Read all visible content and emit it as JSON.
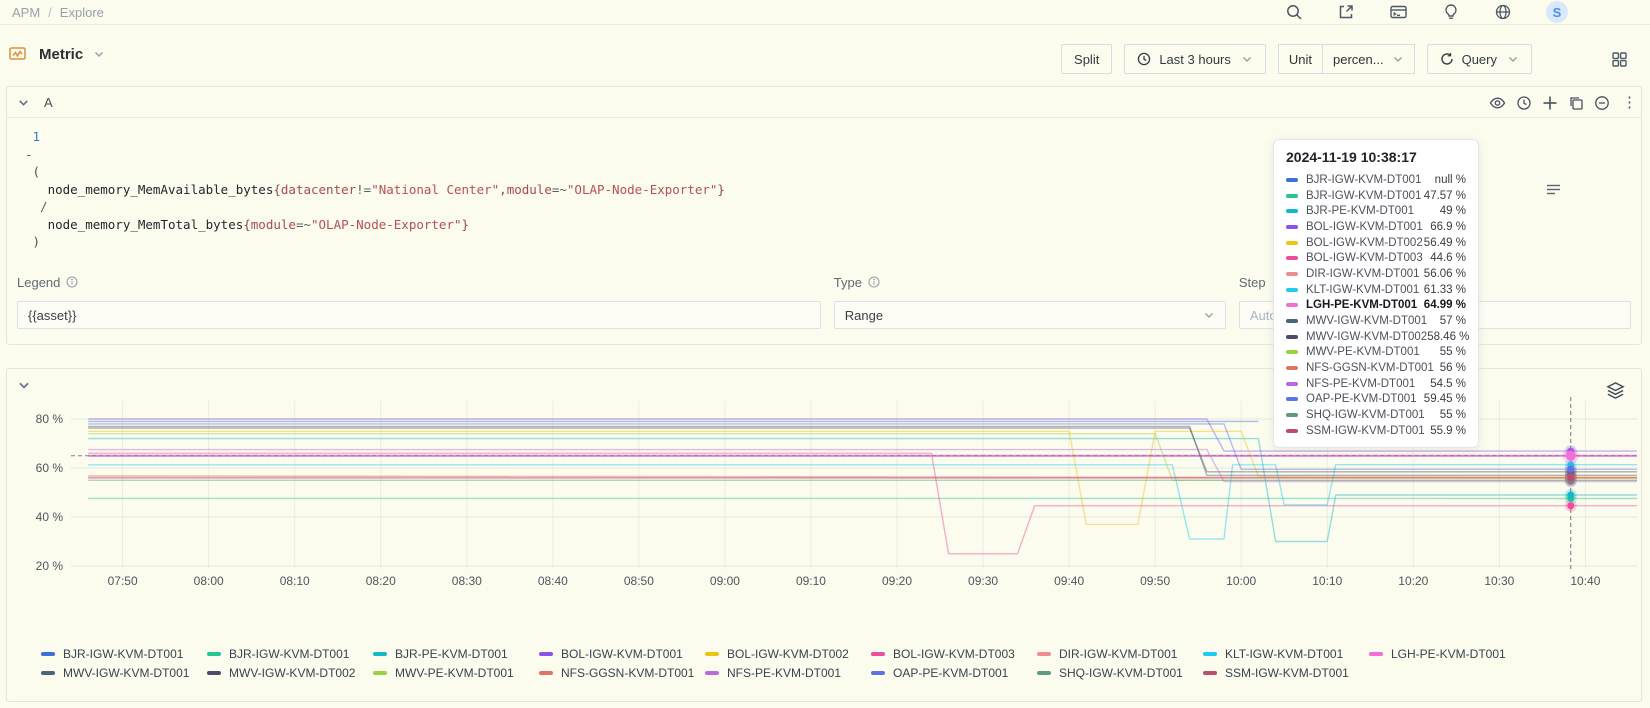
{
  "breadcrumb": {
    "items": [
      "APM",
      "Explore"
    ],
    "separator": "/"
  },
  "topbar": {
    "avatar": "S"
  },
  "toolbar": {
    "metric_label": "Metric",
    "split_label": "Split",
    "time_range": "Last 3 hours",
    "unit_label": "Unit",
    "unit_value": "percen...",
    "query_label": "Query"
  },
  "query_panel": {
    "row_label": "A",
    "code_lines": [
      [
        {
          "t": " 1",
          "c": "num"
        }
      ],
      [
        {
          "t": "-",
          "c": "op"
        }
      ],
      [
        {
          "t": " (",
          "c": "paren"
        }
      ],
      [
        {
          "t": "   ",
          "c": "metric"
        },
        {
          "t": "node_memory_MemAvailable_bytes",
          "c": "metric"
        },
        {
          "t": "{",
          "c": "brace"
        },
        {
          "t": "datacenter",
          "c": "label"
        },
        {
          "t": "!=",
          "c": "op2"
        },
        {
          "t": "\"National Center\"",
          "c": "str"
        },
        {
          "t": ",",
          "c": "brace"
        },
        {
          "t": "module",
          "c": "label"
        },
        {
          "t": "=~",
          "c": "op2"
        },
        {
          "t": "\"OLAP-Node-Exporter\"",
          "c": "str"
        },
        {
          "t": "}",
          "c": "brace"
        }
      ],
      [
        {
          "t": "  /",
          "c": "op"
        }
      ],
      [
        {
          "t": "   ",
          "c": "metric"
        },
        {
          "t": "node_memory_MemTotal_bytes",
          "c": "metric"
        },
        {
          "t": "{",
          "c": "brace"
        },
        {
          "t": "module",
          "c": "label"
        },
        {
          "t": "=~",
          "c": "op2"
        },
        {
          "t": "\"OLAP-Node-Exporter\"",
          "c": "str"
        },
        {
          "t": "}",
          "c": "brace"
        }
      ],
      [
        {
          "t": " )",
          "c": "paren"
        }
      ]
    ],
    "config": {
      "legend_label": "Legend",
      "legend_value": "{{asset}}",
      "type_label": "Type",
      "type_value": "Range",
      "step_label": "Step",
      "step_placeholder": "Auto (S)"
    }
  },
  "tooltip": {
    "title": "2024-11-19 10:38:17"
  },
  "chart_data": {
    "type": "line",
    "title": "",
    "ylabel": "percent",
    "ylim": [
      18,
      88
    ],
    "yticks": [
      {
        "v": 80,
        "label": "80 %"
      },
      {
        "v": 60,
        "label": "60 %"
      },
      {
        "v": 40,
        "label": "40 %"
      },
      {
        "v": 20,
        "label": "20 %"
      }
    ],
    "xticks": [
      "07:50",
      "08:00",
      "08:10",
      "08:20",
      "08:30",
      "08:40",
      "08:50",
      "09:00",
      "09:10",
      "09:20",
      "09:30",
      "09:40",
      "09:50",
      "10:00",
      "10:10",
      "10:20",
      "10:30",
      "10:40"
    ],
    "x_domain_minutes": [
      0,
      182
    ],
    "x_first_tick_offset_min": 6,
    "x_tick_step_min": 10,
    "grid": true,
    "legend_position": "bottom",
    "crosshair": {
      "time": "2024-11-19 10:38:17",
      "t_min": 174.3,
      "y_value": 64.99
    },
    "series": [
      {
        "name": "BJR-IGW-KVM-DT001",
        "color": "#3d6fd8",
        "value": null,
        "display_value": "null %",
        "points": [
          [
            2,
            79
          ],
          [
            138,
            79
          ]
        ]
      },
      {
        "name": "BJR-IGW-KVM-DT001",
        "color": "#23c693",
        "value": 47.57,
        "display_value": "47.57 %",
        "points": [
          [
            2,
            47.6
          ],
          [
            182,
            47.57
          ]
        ]
      },
      {
        "name": "BJR-PE-KVM-DT001",
        "color": "#13b9c8",
        "value": 49,
        "display_value": "49 %",
        "points": [
          [
            2,
            72
          ],
          [
            138,
            72
          ],
          [
            140,
            30
          ],
          [
            146,
            30
          ],
          [
            147,
            49
          ],
          [
            182,
            49
          ]
        ]
      },
      {
        "name": "BOL-IGW-KVM-DT001",
        "color": "#8a52e8",
        "value": 66.9,
        "display_value": "66.9 %",
        "points": [
          [
            2,
            80
          ],
          [
            132,
            80
          ],
          [
            134,
            66.9
          ],
          [
            182,
            66.9
          ]
        ]
      },
      {
        "name": "BOL-IGW-KVM-DT002",
        "color": "#eec414",
        "value": 56.49,
        "display_value": "56.49 %",
        "points": [
          [
            2,
            75
          ],
          [
            116,
            75
          ],
          [
            118,
            37
          ],
          [
            124,
            37
          ],
          [
            126,
            75
          ],
          [
            136,
            75
          ],
          [
            138,
            56.49
          ],
          [
            182,
            56.49
          ]
        ]
      },
      {
        "name": "BOL-IGW-KVM-DT003",
        "color": "#ee4d9b",
        "value": 44.6,
        "display_value": "44.6 %",
        "points": [
          [
            2,
            66
          ],
          [
            100,
            66
          ],
          [
            102,
            25
          ],
          [
            110,
            25
          ],
          [
            112,
            44.6
          ],
          [
            182,
            44.6
          ]
        ]
      },
      {
        "name": "DIR-IGW-KVM-DT001",
        "color": "#f08c8c",
        "value": 56.06,
        "display_value": "56.06 %",
        "points": [
          [
            2,
            56.3
          ],
          [
            182,
            56.06
          ]
        ]
      },
      {
        "name": "KLT-IGW-KVM-DT001",
        "color": "#1ec9f2",
        "value": 61.33,
        "display_value": "61.33 %",
        "points": [
          [
            2,
            61.3
          ],
          [
            128,
            61.3
          ],
          [
            130,
            31
          ],
          [
            134,
            31
          ],
          [
            135,
            61.3
          ],
          [
            140,
            61.3
          ],
          [
            141,
            45
          ],
          [
            146,
            45
          ],
          [
            147,
            61.33
          ],
          [
            182,
            61.33
          ]
        ]
      },
      {
        "name": "LGH-PE-KVM-DT001",
        "color": "#f26fd8",
        "value": 64.99,
        "display_value": "64.99 %",
        "points": [
          [
            2,
            65
          ],
          [
            182,
            64.99
          ]
        ],
        "bold": true
      },
      {
        "name": "MWV-IGW-KVM-DT001",
        "color": "#47637d",
        "value": 57,
        "display_value": "57 %",
        "points": [
          [
            2,
            77
          ],
          [
            130,
            77
          ],
          [
            132,
            57
          ],
          [
            182,
            57
          ]
        ]
      },
      {
        "name": "MWV-IGW-KVM-DT002",
        "color": "#534966",
        "value": 58.46,
        "display_value": "58.46 %",
        "points": [
          [
            2,
            76.3
          ],
          [
            130,
            76.3
          ],
          [
            132,
            58.46
          ],
          [
            182,
            58.46
          ]
        ]
      },
      {
        "name": "MWV-PE-KVM-DT001",
        "color": "#9ed044",
        "value": 55,
        "display_value": "55 %",
        "points": [
          [
            2,
            74
          ],
          [
            126,
            74
          ],
          [
            128,
            55
          ],
          [
            182,
            55
          ]
        ]
      },
      {
        "name": "NFS-GGSN-KVM-DT001",
        "color": "#dd7468",
        "value": 56,
        "display_value": "56 %",
        "points": [
          [
            2,
            56.8
          ],
          [
            182,
            56
          ]
        ]
      },
      {
        "name": "NFS-PE-KVM-DT001",
        "color": "#b76ae0",
        "value": 54.5,
        "display_value": "54.5 %",
        "points": [
          [
            2,
            67.5
          ],
          [
            132,
            67.5
          ],
          [
            134,
            54.5
          ],
          [
            182,
            54.5
          ]
        ]
      },
      {
        "name": "OAP-PE-KVM-DT001",
        "color": "#5f72e4",
        "value": 59.45,
        "display_value": "59.45 %",
        "points": [
          [
            2,
            78
          ],
          [
            134,
            78
          ],
          [
            136,
            59.45
          ],
          [
            182,
            59.45
          ]
        ]
      },
      {
        "name": "SHQ-IGW-KVM-DT001",
        "color": "#5d9b82",
        "value": 55,
        "display_value": "55 %",
        "points": [
          [
            2,
            55
          ],
          [
            182,
            55
          ]
        ]
      },
      {
        "name": "SSM-IGW-KVM-DT001",
        "color": "#bd4c6e",
        "value": 55.9,
        "display_value": "55.9 %",
        "points": [
          [
            2,
            55.9
          ],
          [
            182,
            55.9
          ]
        ]
      }
    ]
  }
}
